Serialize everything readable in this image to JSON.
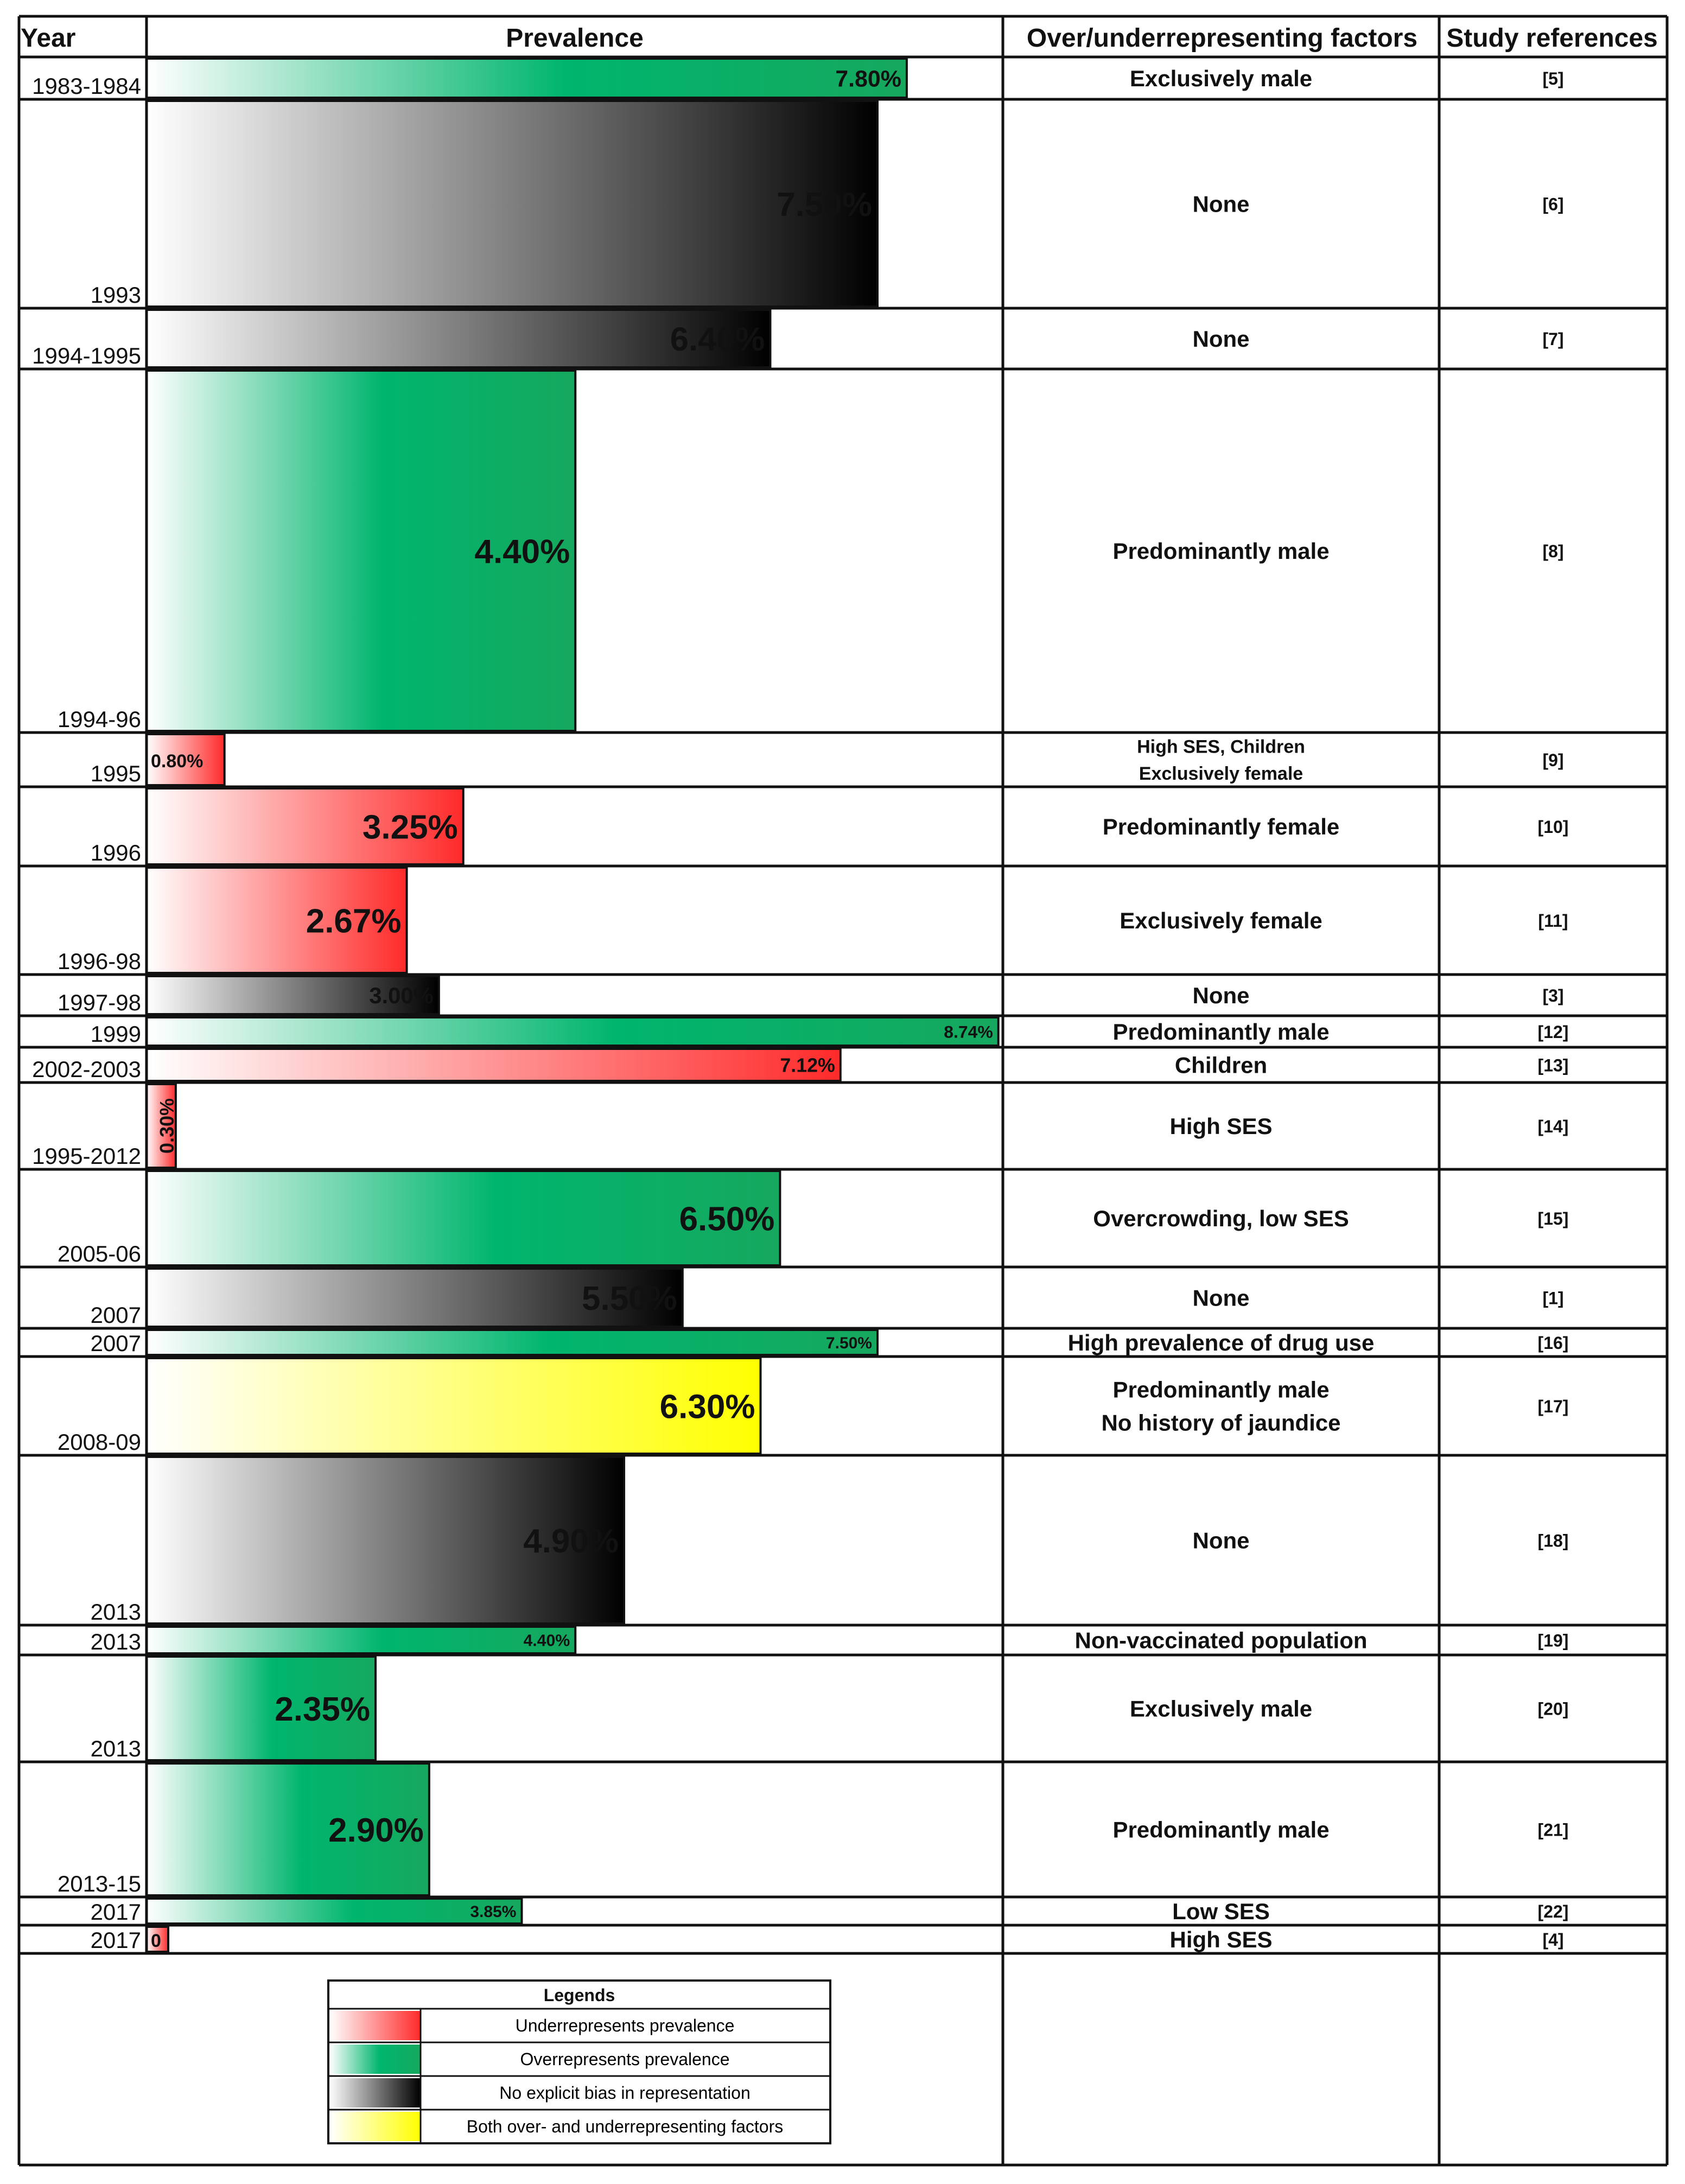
{
  "headers": {
    "year": "Year",
    "prevalence": "Prevalence",
    "factors": "Over/underrepresenting factors",
    "refs": "Study references"
  },
  "colors": {
    "under": "#ff2a2a",
    "over": "#00b56e",
    "none": "#000000",
    "both": "#ffff00"
  },
  "chart_data": {
    "type": "bar",
    "orientation": "horizontal",
    "xlabel": "Prevalence",
    "xlim": [
      0,
      12
    ],
    "categories": [
      "1983-1984",
      "1993",
      "1994-1995",
      "1994-96",
      "1995",
      "1996",
      "1996-98",
      "1997-98",
      "1999",
      "2002-2003",
      "1995-2012",
      "2005-06",
      "2007",
      "2007",
      "2008-09",
      "2013",
      "2013",
      "2013",
      "2013-15",
      "2017",
      "2017"
    ],
    "values": [
      7.8,
      7.5,
      6.4,
      4.4,
      0.8,
      3.25,
      2.67,
      3.0,
      8.74,
      7.12,
      0.3,
      6.5,
      5.5,
      7.5,
      6.3,
      4.9,
      4.4,
      2.35,
      2.9,
      3.85,
      0
    ],
    "value_labels": [
      "7.80%",
      "7.50%",
      "6.40%",
      "4.40%",
      "0.80%",
      "3.25%",
      "2.67%",
      "3.00%",
      "8.74%",
      "7.12%",
      "0.30%",
      "6.50%",
      "5.50%",
      "7.50%",
      "6.30%",
      "4.90%",
      "4.40%",
      "2.35%",
      "2.90%",
      "3.85%",
      "0"
    ],
    "rows": [
      {
        "year": "1983-1984",
        "value": 7.8,
        "label": "7.80%",
        "cat": "over",
        "factors": [
          "Exclusively male"
        ],
        "ref": "[5]"
      },
      {
        "year": "1993",
        "value": 7.5,
        "label": "7.50%",
        "cat": "none",
        "factors": [
          "None"
        ],
        "ref": "[6]"
      },
      {
        "year": "1994-1995",
        "value": 6.4,
        "label": "6.40%",
        "cat": "none",
        "factors": [
          "None"
        ],
        "ref": "[7]"
      },
      {
        "year": "1994-96",
        "value": 4.4,
        "label": "4.40%",
        "cat": "over",
        "factors": [
          "Predominantly male"
        ],
        "ref": "[8]"
      },
      {
        "year": "1995",
        "value": 0.8,
        "label": "0.80%",
        "cat": "under",
        "factors": [
          "High SES, Children",
          "Exclusively female"
        ],
        "ref": "[9]"
      },
      {
        "year": "1996",
        "value": 3.25,
        "label": "3.25%",
        "cat": "under",
        "factors": [
          "Predominantly female"
        ],
        "ref": "[10]"
      },
      {
        "year": "1996-98",
        "value": 2.67,
        "label": "2.67%",
        "cat": "under",
        "factors": [
          "Exclusively female"
        ],
        "ref": "[11]"
      },
      {
        "year": "1997-98",
        "value": 3.0,
        "label": "3.00%",
        "cat": "none",
        "factors": [
          "None"
        ],
        "ref": "[3]"
      },
      {
        "year": "1999",
        "value": 8.74,
        "label": "8.74%",
        "cat": "over",
        "factors": [
          "Predominantly male"
        ],
        "ref": "[12]"
      },
      {
        "year": "2002-2003",
        "value": 7.12,
        "label": "7.12%",
        "cat": "under",
        "factors": [
          "Children"
        ],
        "ref": "[13]"
      },
      {
        "year": "1995-2012",
        "value": 0.3,
        "label": "0.30%",
        "cat": "under",
        "factors": [
          "High SES"
        ],
        "ref": "[14]"
      },
      {
        "year": "2005-06",
        "value": 6.5,
        "label": "6.50%",
        "cat": "over",
        "factors": [
          "Overcrowding, low SES"
        ],
        "ref": "[15]"
      },
      {
        "year": "2007",
        "value": 5.5,
        "label": "5.50%",
        "cat": "none",
        "factors": [
          "None"
        ],
        "ref": "[1]"
      },
      {
        "year": "2007",
        "value": 7.5,
        "label": "7.50%",
        "cat": "over",
        "factors": [
          "High prevalence of drug use"
        ],
        "ref": "[16]"
      },
      {
        "year": "2008-09",
        "value": 6.3,
        "label": "6.30%",
        "cat": "both",
        "factors": [
          "Predominantly male",
          "No history of jaundice"
        ],
        "ref": "[17]"
      },
      {
        "year": "2013",
        "value": 4.9,
        "label": "4.90%",
        "cat": "none",
        "factors": [
          "None"
        ],
        "ref": "[18]"
      },
      {
        "year": "2013",
        "value": 4.4,
        "label": "4.40%",
        "cat": "over",
        "factors": [
          "Non-vaccinated population"
        ],
        "ref": "[19]"
      },
      {
        "year": "2013",
        "value": 2.35,
        "label": "2.35%",
        "cat": "over",
        "factors": [
          "Exclusively male"
        ],
        "ref": "[20]"
      },
      {
        "year": "2013-15",
        "value": 2.9,
        "label": "2.90%",
        "cat": "over",
        "factors": [
          "Predominantly male"
        ],
        "ref": "[21]"
      },
      {
        "year": "2017",
        "value": 3.85,
        "label": "3.85%",
        "cat": "over",
        "factors": [
          "Low SES"
        ],
        "ref": "[22]"
      },
      {
        "year": "2017",
        "value": 0,
        "label": "0",
        "cat": "under",
        "factors": [
          "High SES"
        ],
        "ref": "[4]"
      }
    ],
    "legend": {
      "title": "Legends",
      "items": [
        {
          "cat": "under",
          "label": "Underrepresents prevalence"
        },
        {
          "cat": "over",
          "label": "Overrepresents prevalence"
        },
        {
          "cat": "none",
          "label": "No explicit bias in representation"
        },
        {
          "cat": "both",
          "label": "Both over- and underrepresenting factors"
        }
      ]
    }
  }
}
